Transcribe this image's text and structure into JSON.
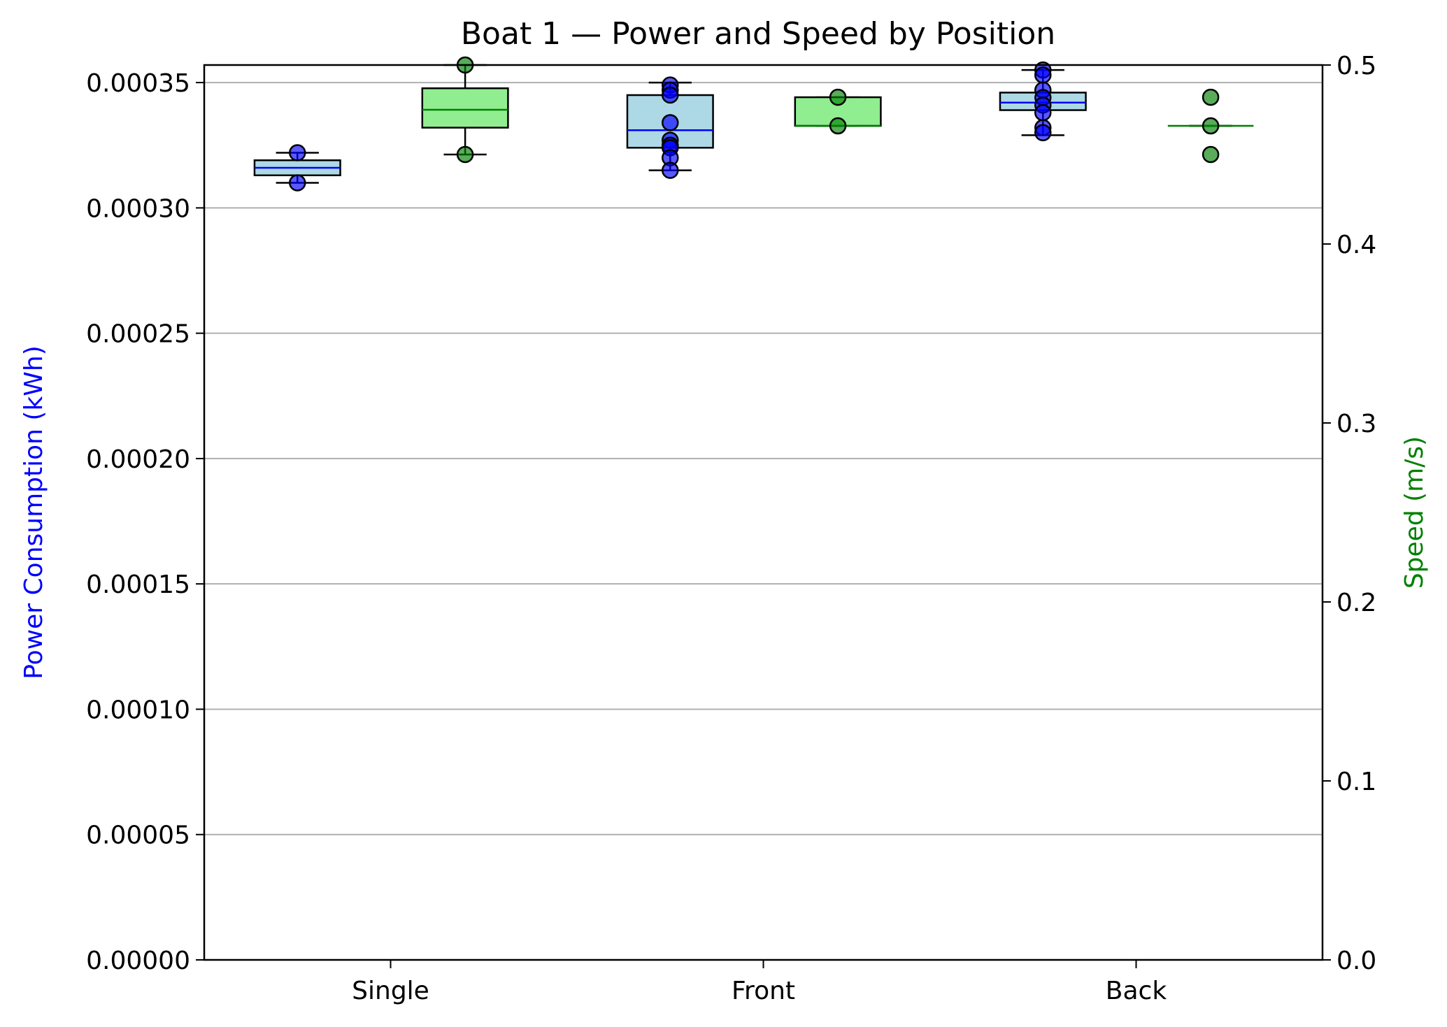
{
  "chart_data": {
    "type": "box",
    "title": "Boat 1 — Power and Speed by Position",
    "categories": [
      "Single",
      "Front",
      "Back"
    ],
    "y_left": {
      "label": "Power Consumption (kWh)",
      "range": [
        0,
        0.000357
      ],
      "ticks": [
        "0.00000",
        "0.00005",
        "0.00010",
        "0.00015",
        "0.00020",
        "0.00025",
        "0.00030",
        "0.00035"
      ],
      "tick_values": [
        0,
        5e-05,
        0.0001,
        0.00015,
        0.0002,
        0.00025,
        0.0003,
        0.00035
      ],
      "color": "#0000ff"
    },
    "y_right": {
      "label": "Speed (m/s)",
      "range": [
        0,
        0.5
      ],
      "ticks": [
        "0.0",
        "0.1",
        "0.2",
        "0.3",
        "0.4",
        "0.5"
      ],
      "tick_values": [
        0,
        0.1,
        0.2,
        0.3,
        0.4,
        0.5
      ],
      "color": "#008000"
    },
    "grid": "horizontal",
    "series": [
      {
        "name": "Power Consumption (kWh)",
        "axis": "left",
        "box_color": "#add8e6",
        "median_color": "#0000ff",
        "point_color": "#0000ff",
        "boxes": [
          {
            "category": "Single",
            "whisker_low": 0.00031,
            "q1": 0.000313,
            "median": 0.000316,
            "q3": 0.000319,
            "whisker_high": 0.000322,
            "points": [
              0.000322,
              0.00031
            ]
          },
          {
            "category": "Front",
            "whisker_low": 0.000315,
            "q1": 0.000324,
            "median": 0.000331,
            "q3": 0.000345,
            "whisker_high": 0.00035,
            "points": [
              0.000349,
              0.000347,
              0.000345,
              0.000334,
              0.000327,
              0.000325,
              0.000324,
              0.00032,
              0.000315
            ]
          },
          {
            "category": "Back",
            "whisker_low": 0.000329,
            "q1": 0.000339,
            "median": 0.000342,
            "q3": 0.000346,
            "whisker_high": 0.000355,
            "points": [
              0.000355,
              0.000353,
              0.000347,
              0.000344,
              0.000341,
              0.000338,
              0.000332,
              0.00033
            ]
          }
        ]
      },
      {
        "name": "Speed (m/s)",
        "axis": "right",
        "box_color": "#90ee90",
        "median_color": "#008000",
        "point_color": "#008000",
        "boxes": [
          {
            "category": "Single",
            "whisker_low": 0.45,
            "q1": 0.465,
            "median": 0.475,
            "q3": 0.487,
            "whisker_high": 0.5,
            "points": [
              0.5,
              0.45
            ]
          },
          {
            "category": "Front",
            "whisker_low": 0.466,
            "q1": 0.466,
            "median": 0.466,
            "q3": 0.482,
            "whisker_high": 0.482,
            "points": [
              0.482,
              0.466
            ]
          },
          {
            "category": "Back",
            "whisker_low": 0.466,
            "q1": 0.466,
            "median": 0.466,
            "q3": 0.466,
            "whisker_high": 0.466,
            "points": [
              0.482,
              0.466,
              0.45
            ]
          }
        ]
      }
    ]
  }
}
